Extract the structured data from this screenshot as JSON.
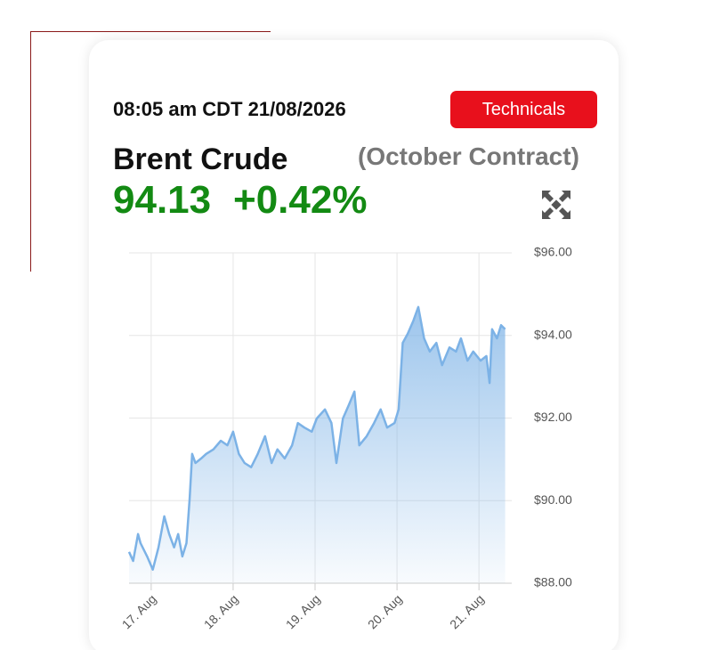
{
  "header": {
    "time": "08:05 am CDT 21/08/2026",
    "button": "Technicals",
    "name": "Brent Crude",
    "contract": "(October Contract)",
    "price": "94.13",
    "change": "+0.42%"
  },
  "chart_data": {
    "type": "area",
    "color": "#7cb2e6",
    "grid": true,
    "x": [
      -0.27,
      -0.22,
      -0.16,
      -0.13,
      -0.05,
      0.02,
      0.09,
      0.16,
      0.22,
      0.28,
      0.33,
      0.38,
      0.43,
      0.47,
      0.5,
      0.54,
      0.61,
      0.67,
      0.76,
      0.85,
      0.93,
      1.0,
      1.07,
      1.14,
      1.22,
      1.3,
      1.39,
      1.47,
      1.54,
      1.63,
      1.72,
      1.79,
      1.87,
      1.96,
      2.02,
      2.12,
      2.2,
      2.26,
      2.34,
      2.41,
      2.48,
      2.54,
      2.63,
      2.72,
      2.8,
      2.88,
      2.97,
      3.02,
      3.07,
      3.13,
      3.2,
      3.26,
      3.33,
      3.4,
      3.48,
      3.55,
      3.64,
      3.72,
      3.78,
      3.86,
      3.93,
      4.02,
      4.09,
      4.13,
      4.16,
      4.22,
      4.27,
      4.32
    ],
    "values": [
      88.76,
      88.54,
      89.19,
      88.97,
      88.65,
      88.33,
      88.87,
      89.62,
      89.19,
      88.87,
      89.19,
      88.65,
      88.97,
      90.05,
      91.13,
      90.91,
      91.02,
      91.13,
      91.24,
      91.45,
      91.34,
      91.67,
      91.13,
      90.91,
      90.81,
      91.13,
      91.56,
      90.91,
      91.24,
      91.02,
      91.34,
      91.88,
      91.77,
      91.67,
      91.99,
      92.21,
      91.88,
      90.91,
      91.99,
      92.31,
      92.64,
      91.34,
      91.56,
      91.88,
      92.21,
      91.77,
      91.88,
      92.21,
      93.82,
      94.04,
      94.36,
      94.69,
      93.93,
      93.61,
      93.82,
      93.28,
      93.71,
      93.61,
      93.93,
      93.39,
      93.61,
      93.39,
      93.5,
      92.85,
      94.15,
      93.93,
      94.25,
      94.15
    ],
    "xlim": [
      -0.27,
      4.4
    ],
    "xticks": [
      {
        "value": 0,
        "label": "17. Aug"
      },
      {
        "value": 1,
        "label": "18. Aug"
      },
      {
        "value": 2,
        "label": "19. Aug"
      },
      {
        "value": 3,
        "label": "20. Aug"
      },
      {
        "value": 4,
        "label": "21. Aug"
      }
    ],
    "ylim": [
      88,
      96
    ],
    "yticks": [
      {
        "value": 88,
        "label": "$88.00"
      },
      {
        "value": 90,
        "label": "$90.00"
      },
      {
        "value": 92,
        "label": "$92.00"
      },
      {
        "value": 94,
        "label": "$94.00"
      },
      {
        "value": 96,
        "label": "$96.00"
      }
    ]
  }
}
